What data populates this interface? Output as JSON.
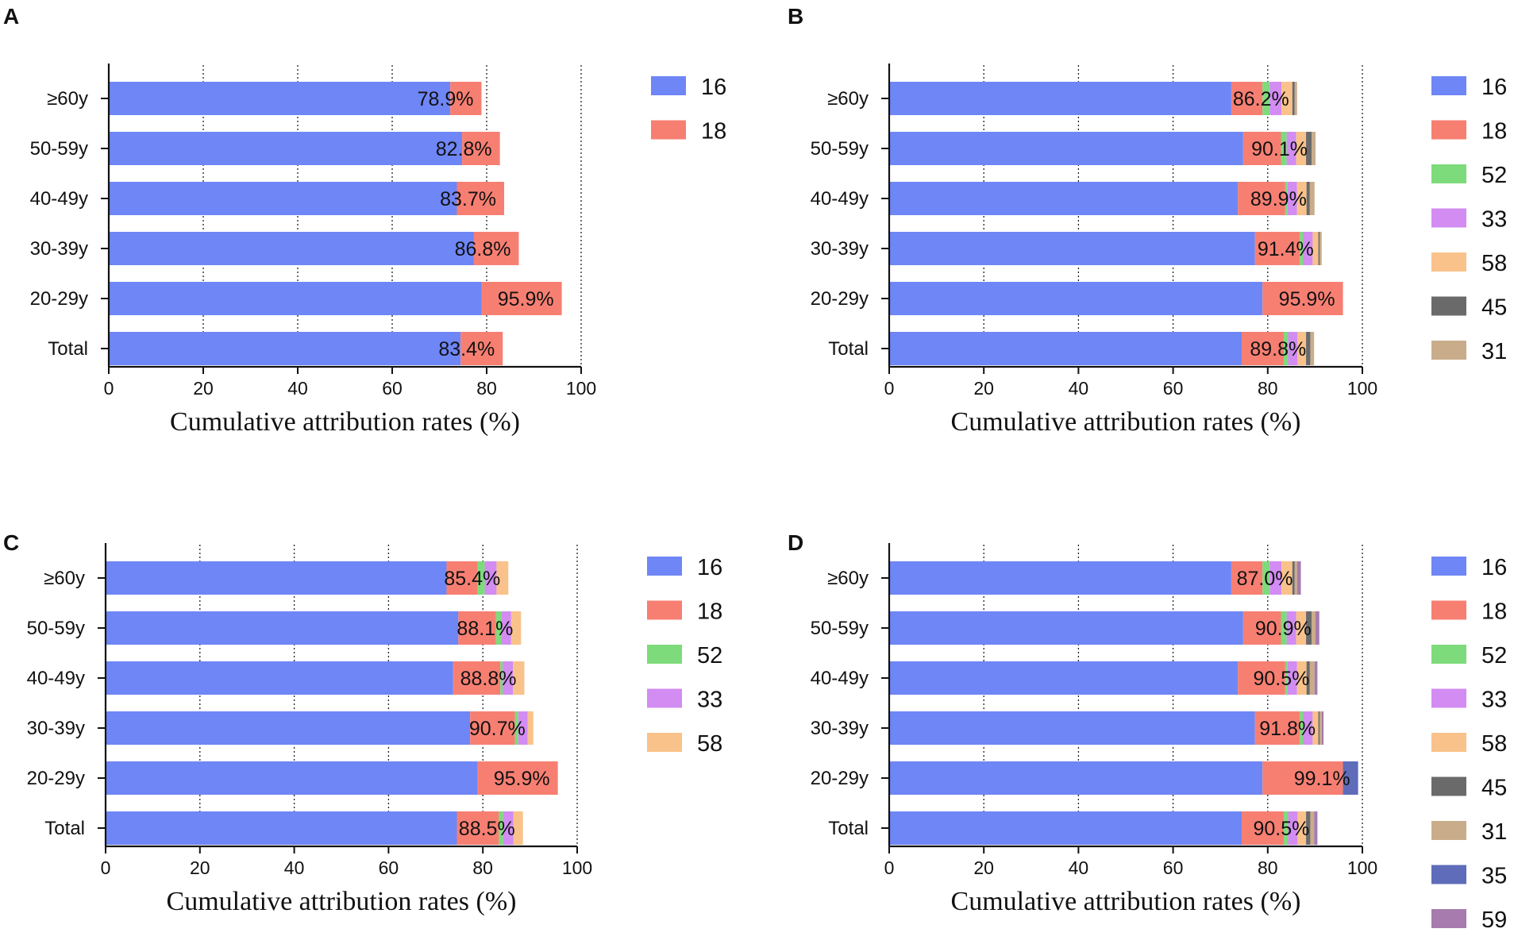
{
  "colors": {
    "16": "#6e86f6",
    "18": "#f77f72",
    "52": "#7ddb7b",
    "33": "#d28cf2",
    "58": "#f9c28a",
    "45": "#6a6a6a",
    "31": "#c9ad8b",
    "35": "#5e6cba",
    "59": "#a77bad"
  },
  "chart_data": [
    {
      "panel": "A",
      "type": "bar",
      "orientation": "horizontal",
      "stacked": true,
      "categories": [
        "≥60y",
        "50-59y",
        "40-49y",
        "30-39y",
        "20-29y",
        "Total"
      ],
      "series": [
        {
          "name": "16",
          "values": [
            72.3,
            74.8,
            73.7,
            77.3,
            78.9,
            74.5
          ]
        },
        {
          "name": "18",
          "values": [
            6.6,
            8.0,
            10.0,
            9.5,
            17.0,
            8.9
          ]
        }
      ],
      "totals": [
        "78.9%",
        "82.8%",
        "83.7%",
        "86.8%",
        "95.9%",
        "83.4%"
      ],
      "xlabel": "Cumulative attribution rates (%)",
      "xlim": [
        0,
        100
      ],
      "xticks": [
        "0",
        "20",
        "40",
        "60",
        "80",
        "100"
      ],
      "grid": "vertical dotted",
      "legend_position": "right"
    },
    {
      "panel": "B",
      "type": "bar",
      "orientation": "horizontal",
      "stacked": true,
      "categories": [
        "≥60y",
        "50-59y",
        "40-49y",
        "30-39y",
        "20-29y",
        "Total"
      ],
      "series": [
        {
          "name": "16",
          "values": [
            72.3,
            74.8,
            73.7,
            77.3,
            78.9,
            74.5
          ]
        },
        {
          "name": "18",
          "values": [
            6.6,
            8.0,
            10.0,
            9.5,
            17.0,
            8.9
          ]
        },
        {
          "name": "52",
          "values": [
            1.5,
            1.2,
            0.5,
            0.7,
            0,
            0.9
          ]
        },
        {
          "name": "33",
          "values": [
            2.5,
            2.0,
            2.0,
            2.0,
            0,
            2.0
          ]
        },
        {
          "name": "58",
          "values": [
            2.3,
            2.1,
            2.0,
            1.2,
            0,
            1.8
          ]
        },
        {
          "name": "45",
          "values": [
            0.5,
            1.2,
            0.7,
            0.3,
            0,
            0.9
          ]
        },
        {
          "name": "31",
          "values": [
            0.5,
            0.8,
            1.0,
            0.4,
            0,
            0.8
          ]
        }
      ],
      "totals": [
        "86.2%",
        "90.1%",
        "89.9%",
        "91.4%",
        "95.9%",
        "89.8%"
      ],
      "xlabel": "Cumulative attribution rates (%)",
      "xlim": [
        0,
        100
      ],
      "xticks": [
        "0",
        "20",
        "40",
        "60",
        "80",
        "100"
      ],
      "grid": "vertical dotted",
      "legend_position": "right"
    },
    {
      "panel": "C",
      "type": "bar",
      "orientation": "horizontal",
      "stacked": true,
      "categories": [
        "≥60y",
        "50-59y",
        "40-49y",
        "30-39y",
        "20-29y",
        "Total"
      ],
      "series": [
        {
          "name": "16",
          "values": [
            72.3,
            74.8,
            73.7,
            77.3,
            78.9,
            74.5
          ]
        },
        {
          "name": "18",
          "values": [
            6.6,
            8.0,
            10.0,
            9.5,
            17.0,
            8.9
          ]
        },
        {
          "name": "52",
          "values": [
            1.5,
            1.2,
            0.5,
            0.7,
            0,
            0.9
          ]
        },
        {
          "name": "33",
          "values": [
            2.5,
            2.0,
            2.2,
            2.0,
            0,
            2.2
          ]
        },
        {
          "name": "58",
          "values": [
            2.5,
            2.1,
            2.4,
            1.2,
            0,
            2.0
          ]
        }
      ],
      "totals": [
        "85.4%",
        "88.1%",
        "88.8%",
        "90.7%",
        "95.9%",
        "88.5%"
      ],
      "xlabel": "Cumulative attribution rates (%)",
      "xlim": [
        0,
        100
      ],
      "xticks": [
        "0",
        "20",
        "40",
        "60",
        "80",
        "100"
      ],
      "grid": "vertical dotted",
      "legend_position": "right"
    },
    {
      "panel": "D",
      "type": "bar",
      "orientation": "horizontal",
      "stacked": true,
      "categories": [
        "≥60y",
        "50-59y",
        "40-49y",
        "30-39y",
        "20-29y",
        "Total"
      ],
      "series": [
        {
          "name": "16",
          "values": [
            72.3,
            74.8,
            73.7,
            77.3,
            78.9,
            74.5
          ]
        },
        {
          "name": "18",
          "values": [
            6.6,
            8.0,
            10.0,
            9.5,
            17.0,
            8.9
          ]
        },
        {
          "name": "52",
          "values": [
            1.5,
            1.2,
            0.5,
            0.7,
            0,
            0.9
          ]
        },
        {
          "name": "33",
          "values": [
            2.5,
            2.0,
            2.0,
            2.0,
            0,
            2.0
          ]
        },
        {
          "name": "58",
          "values": [
            2.3,
            2.1,
            2.0,
            1.2,
            0,
            1.8
          ]
        },
        {
          "name": "45",
          "values": [
            0.5,
            1.2,
            0.7,
            0.3,
            0,
            0.9
          ]
        },
        {
          "name": "31",
          "values": [
            0.5,
            0.8,
            1.0,
            0.4,
            0,
            0.8
          ]
        },
        {
          "name": "35",
          "values": [
            0,
            0,
            0,
            0,
            3.2,
            0
          ]
        },
        {
          "name": "59",
          "values": [
            0.8,
            0.8,
            0.6,
            0.4,
            0,
            0.7
          ]
        }
      ],
      "totals": [
        "87.0%",
        "90.9%",
        "90.5%",
        "91.8%",
        "99.1%",
        "90.5%"
      ],
      "xlabel": "Cumulative attribution rates (%)",
      "xlim": [
        0,
        100
      ],
      "xticks": [
        "0",
        "20",
        "40",
        "60",
        "80",
        "100"
      ],
      "grid": "vertical dotted",
      "legend_position": "right"
    }
  ]
}
